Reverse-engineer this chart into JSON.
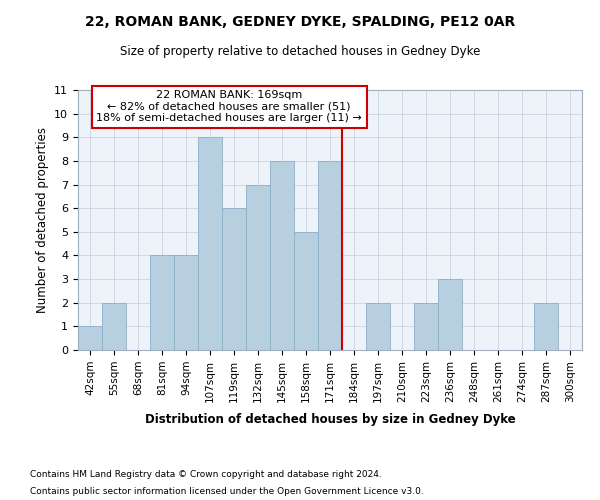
{
  "title1": "22, ROMAN BANK, GEDNEY DYKE, SPALDING, PE12 0AR",
  "title2": "Size of property relative to detached houses in Gedney Dyke",
  "xlabel": "Distribution of detached houses by size in Gedney Dyke",
  "ylabel": "Number of detached properties",
  "footnote1": "Contains HM Land Registry data © Crown copyright and database right 2024.",
  "footnote2": "Contains public sector information licensed under the Open Government Licence v3.0.",
  "annotation_line1": "22 ROMAN BANK: 169sqm",
  "annotation_line2": "← 82% of detached houses are smaller (51)",
  "annotation_line3": "18% of semi-detached houses are larger (11) →",
  "bar_color": "#b8cfe0",
  "bar_edgecolor": "#8aaec8",
  "vline_color": "#cc0000",
  "annotation_box_edgecolor": "#cc0000",
  "background_color": "#eef3fa",
  "grid_color": "#c8d4e4",
  "categories": [
    "42sqm",
    "55sqm",
    "68sqm",
    "81sqm",
    "94sqm",
    "107sqm",
    "119sqm",
    "132sqm",
    "145sqm",
    "158sqm",
    "171sqm",
    "184sqm",
    "197sqm",
    "210sqm",
    "223sqm",
    "236sqm",
    "248sqm",
    "261sqm",
    "274sqm",
    "287sqm",
    "300sqm"
  ],
  "values": [
    1,
    2,
    0,
    4,
    4,
    9,
    6,
    7,
    8,
    5,
    8,
    0,
    2,
    0,
    2,
    3,
    0,
    0,
    0,
    2,
    0
  ],
  "vline_x_index": 10,
  "ylim": [
    0,
    11
  ],
  "yticks": [
    0,
    1,
    2,
    3,
    4,
    5,
    6,
    7,
    8,
    9,
    10,
    11
  ]
}
